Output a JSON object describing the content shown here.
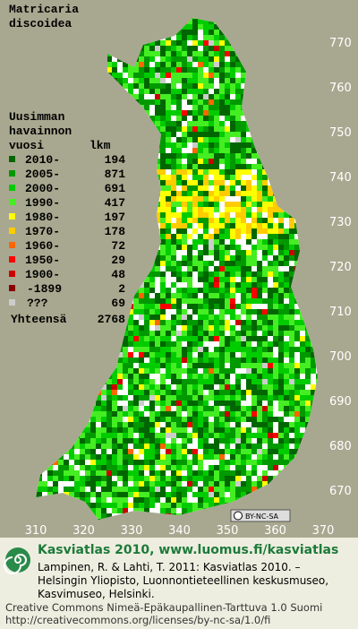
{
  "title_lines": [
    "Matricaria",
    "discoidea"
  ],
  "legend": {
    "heading_lines": [
      "Uusimman",
      "havainnon"
    ],
    "year_header": "vuosi",
    "count_header": "lkm",
    "rows": [
      {
        "label": "2010-",
        "count": 194,
        "color": "#006600"
      },
      {
        "label": "2005-",
        "count": 871,
        "color": "#009900"
      },
      {
        "label": "2000-",
        "count": 691,
        "color": "#00cc00"
      },
      {
        "label": "1990-",
        "count": 417,
        "color": "#44ee22"
      },
      {
        "label": "1980-",
        "count": 197,
        "color": "#ffff00"
      },
      {
        "label": "1970-",
        "count": 178,
        "color": "#ffcc00"
      },
      {
        "label": "1960-",
        "count": 72,
        "color": "#ff6600"
      },
      {
        "label": "1950-",
        "count": 29,
        "color": "#ff0000"
      },
      {
        "label": "1900-",
        "count": 48,
        "color": "#cc0000"
      },
      {
        "label": "-1899",
        "count": 2,
        "color": "#880000"
      },
      {
        "label": "???",
        "count": 69,
        "color": "#cccccc"
      }
    ],
    "total_label": "Yhteensä",
    "total": 2768
  },
  "grid_y_labels": [
    770,
    760,
    750,
    740,
    730,
    720,
    710,
    700,
    690,
    680,
    670
  ],
  "grid_x_labels": [
    310,
    320,
    330,
    340,
    350,
    360,
    370
  ],
  "license_badge": "BY-NC-SA",
  "footer": {
    "brand": "Kasviatlas 2010, www.luomus.fi/kasviatlas",
    "citation_lines": [
      "Lampinen, R. & Lahti, T. 2011: Kasviatlas 2010. –",
      "Helsingin Yliopisto, Luonnontieteellinen keskusmuseo,",
      "Kasvimuseo, Helsinki."
    ],
    "license_lines": [
      "Creative Commons Nimeä-Epäkaupallinen-Tarttuva 1.0 Suomi",
      "http://creativecommons.org/licenses/by-nc-sa/1.0/fi"
    ]
  }
}
